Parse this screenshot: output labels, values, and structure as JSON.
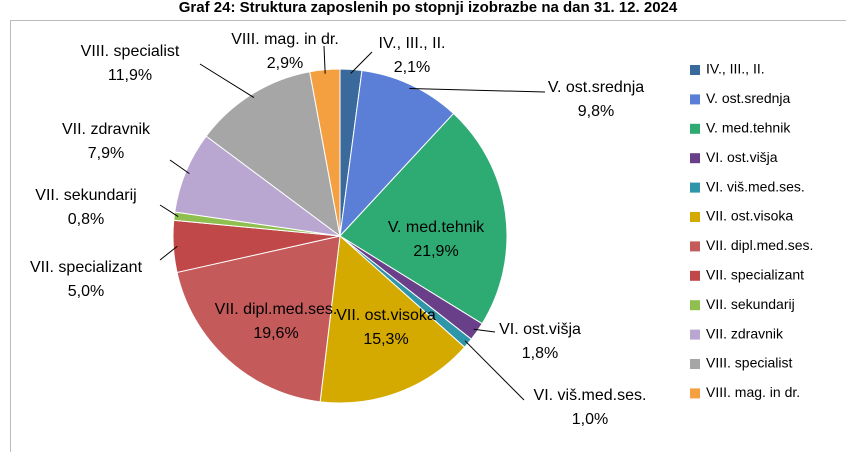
{
  "chart_data": {
    "type": "pie",
    "title": "Graf 24: Struktura zaposlenih po stopnji izobrazbe na dan 31. 12. 2024",
    "categories": [
      "IV., III., II.",
      "V. ost.srednja",
      "V. med.tehnik",
      "VI. ost.višja",
      "VI. viš.med.ses.",
      "VII. ost.visoka",
      "VII. dipl.med.ses.",
      "VII. specializant",
      "VII. sekundarij",
      "VII. zdravnik",
      "VIII. specialist",
      "VIII. mag. in dr."
    ],
    "values": [
      2.1,
      9.8,
      21.9,
      1.8,
      1.0,
      15.3,
      19.6,
      5.0,
      0.8,
      7.9,
      11.9,
      2.9
    ],
    "value_labels": [
      "2,1%",
      "9,8%",
      "21,9%",
      "1,8%",
      "1,0%",
      "15,3%",
      "19,6%",
      "5,0%",
      "0,8%",
      "7,9%",
      "11,9%",
      "2,9%"
    ],
    "colors": [
      "#3a6a9c",
      "#5b7fd6",
      "#2eaa73",
      "#6a3f8a",
      "#2f95a8",
      "#d4aa00",
      "#c45a5a",
      "#c04848",
      "#8fbf4f",
      "#b9a7d1",
      "#a6a6a6",
      "#f4a040"
    ],
    "legend": "right"
  }
}
